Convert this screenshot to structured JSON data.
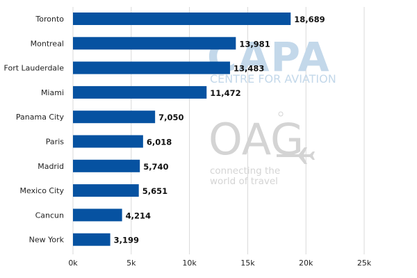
{
  "chart_data": {
    "type": "bar",
    "orientation": "horizontal",
    "categories": [
      "Toronto",
      "Montreal",
      "Fort Lauderdale",
      "Miami",
      "Panama City",
      "Paris",
      "Madrid",
      "Mexico City",
      "Cancun",
      "New York"
    ],
    "values": [
      18689,
      13981,
      13483,
      11472,
      7050,
      6018,
      5740,
      5651,
      4214,
      3199
    ],
    "value_labels": [
      "18,689",
      "13,981",
      "13,483",
      "11,472",
      "7,050",
      "6,018",
      "5,740",
      "5,651",
      "4,214",
      "3,199"
    ],
    "xlim": [
      0,
      25000
    ],
    "xticks": [
      0,
      5000,
      10000,
      15000,
      20000,
      25000
    ],
    "xtick_labels": [
      "0k",
      "5k",
      "10k",
      "15k",
      "20k",
      "25k"
    ],
    "title": "",
    "xlabel": "",
    "ylabel": "",
    "grid": "vertical",
    "legend": "none",
    "bar_color": "#0652a1"
  },
  "watermarks": {
    "capa_logo": "CAPA",
    "capa_subtitle": "CENTRE FOR AVIATION",
    "oag_logo": "OAG",
    "oag_tagline_line1": "connecting the",
    "oag_tagline_line2": "world of travel",
    "capa_color": "#c3d8ea",
    "oag_color": "#d4d4d4"
  }
}
